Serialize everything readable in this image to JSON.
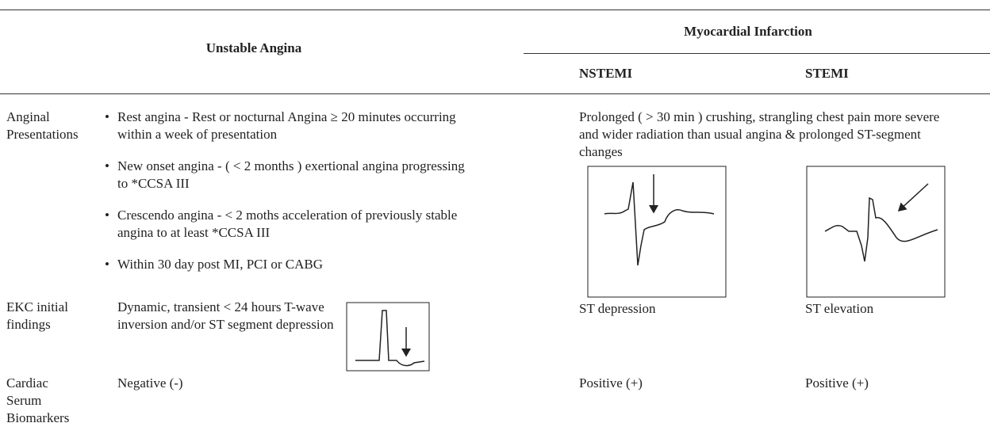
{
  "table": {
    "header": {
      "unstable_angina": "Unstable Angina",
      "myocardial_infarction": "Myocardial Infarction",
      "nstemi": "NSTEMI",
      "stemi": "STEMI"
    },
    "rows": [
      {
        "label": "Anginal Presentations",
        "unstable_angina": [
          "Rest angina - Rest or nocturnal Angina ≥ 20 minutes occurring within a week of presentation",
          "New onset angina - ( < 2 months ) exertional angina progressing to *CCSA III",
          "Crescendo angina - < 2 moths acceleration of previously stable angina to at least *CCSA III",
          "Within 30 day post MI, PCI or CABG"
        ],
        "myocardial_infarction": "Prolonged ( > 30 min ) crushing, strangling chest pain more severe and wider radiation than usual angina & prolonged ST-segment changes"
      },
      {
        "label": "EKC initial findings",
        "unstable_angina": "Dynamic, transient < 24 hours T-wave inversion and/or ST segment depression",
        "nstemi": "ST depression",
        "stemi": "ST elevation"
      },
      {
        "label": "Cardiac Serum Biomarkers",
        "unstable_angina": "Negative (-)",
        "nstemi": "Positive (+)",
        "stemi": "Positive (+)"
      }
    ]
  }
}
